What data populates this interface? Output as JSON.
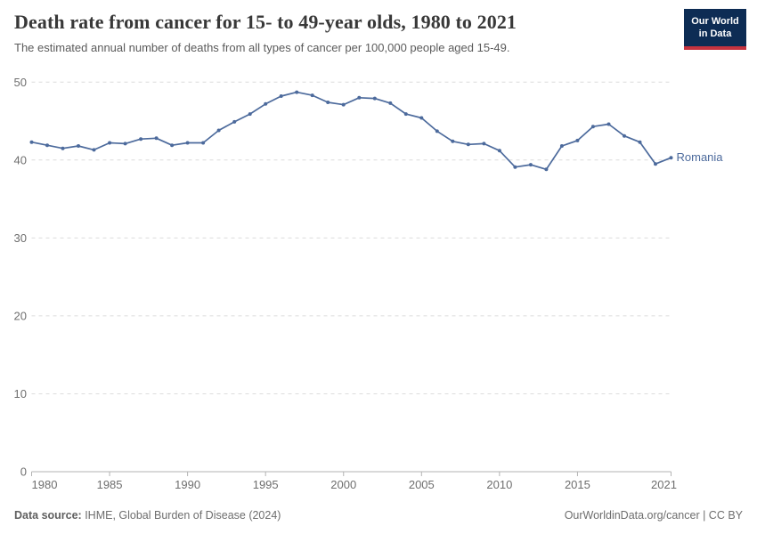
{
  "header": {
    "title": "Death rate from cancer for 15- to 49-year olds, 1980 to 2021",
    "subtitle": "The estimated annual number of deaths from all types of cancer per 100,000 people aged 15-49.",
    "logo": {
      "line1": "Our World",
      "line2": "in Data",
      "bg_color": "#0d2c54",
      "accent_color": "#c5333f"
    }
  },
  "chart_data": {
    "type": "line",
    "title": "Death rate from cancer for 15- to 49-year olds, 1980 to 2021",
    "subtitle": "The estimated annual number of deaths from all types of cancer per 100,000 people aged 15-49.",
    "xlabel": "",
    "ylabel": "",
    "xlim": [
      1980,
      2021
    ],
    "ylim": [
      0,
      50
    ],
    "xticks": [
      1980,
      1985,
      1990,
      1995,
      2000,
      2005,
      2010,
      2015,
      2021
    ],
    "yticks": [
      0,
      10,
      20,
      30,
      40,
      50
    ],
    "grid": "horizontal-dashed",
    "legend_position": "end-of-line-label",
    "x": [
      1980,
      1981,
      1982,
      1983,
      1984,
      1985,
      1986,
      1987,
      1988,
      1989,
      1990,
      1991,
      1992,
      1993,
      1994,
      1995,
      1996,
      1997,
      1998,
      1999,
      2000,
      2001,
      2002,
      2003,
      2004,
      2005,
      2006,
      2007,
      2008,
      2009,
      2010,
      2011,
      2012,
      2013,
      2014,
      2015,
      2016,
      2017,
      2018,
      2019,
      2020,
      2021
    ],
    "series": [
      {
        "name": "Romania",
        "color": "#4c6a9c",
        "values": [
          42.3,
          41.9,
          41.5,
          41.8,
          41.3,
          42.2,
          42.1,
          42.7,
          42.8,
          41.9,
          42.2,
          42.2,
          43.8,
          44.9,
          45.9,
          47.2,
          48.2,
          48.7,
          48.3,
          47.4,
          47.1,
          48.0,
          47.9,
          47.3,
          45.9,
          45.4,
          43.7,
          42.4,
          42.0,
          42.1,
          41.2,
          39.1,
          39.4,
          38.8,
          41.8,
          42.5,
          44.3,
          44.6,
          43.1,
          42.3,
          39.5,
          40.3
        ]
      }
    ],
    "axis_color": "#b3b3b3",
    "grid_color": "#dcdcdc",
    "tick_label_color": "#6e6e6e"
  },
  "footer": {
    "source_label": "Data source:",
    "source_text": " IHME, Global Burden of Disease (2024)",
    "right_text": "OurWorldinData.org/cancer | CC BY"
  }
}
